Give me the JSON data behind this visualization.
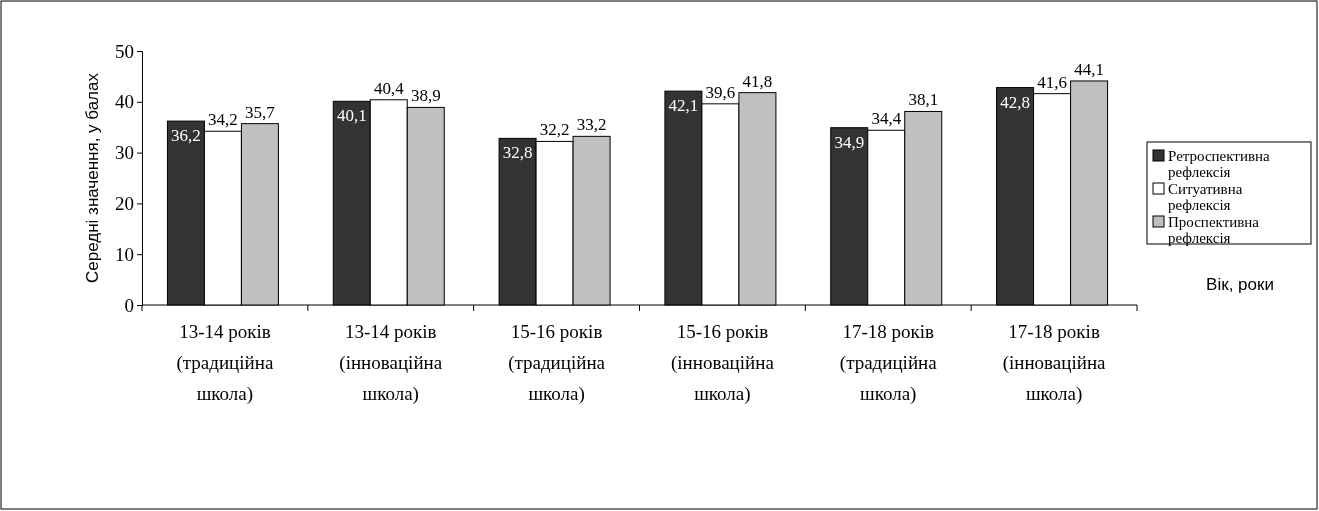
{
  "chart_data": {
    "type": "bar",
    "xlabel": "Вік, роки",
    "ylabel": "Середні значення, у балах",
    "categories": [
      "13-14 років\n(традиційна\nшкола)",
      "13-14 років\n(інноваційна\nшкола)",
      "15-16 років\n(традиційна\nшкола)",
      "15-16 років\n(інноваційна\nшкола)",
      "17-18 років\n(традиційна\nшкола)",
      "17-18 років\n(інноваційна\nшкола)"
    ],
    "series": [
      {
        "name": "Ретроспективна рефлексія",
        "color": "#333333",
        "values": [
          36.2,
          40.1,
          32.8,
          42.1,
          34.9,
          42.8
        ],
        "value_labels": [
          "36,2",
          "40,1",
          "32,8",
          "42,1",
          "34,9",
          "42,8"
        ]
      },
      {
        "name": "Ситуативна рефлексія",
        "color": "#ffffff",
        "values": [
          34.2,
          40.4,
          32.2,
          39.6,
          34.4,
          41.6
        ],
        "value_labels": [
          "34,2",
          "40,4",
          "32,2",
          "39,6",
          "34,4",
          "41,6"
        ]
      },
      {
        "name": "Проспективна рефлексія",
        "color": "#c0c0c0",
        "values": [
          35.7,
          38.9,
          33.2,
          41.8,
          38.1,
          44.1
        ],
        "value_labels": [
          "35,7",
          "38,9",
          "33,2",
          "41,8",
          "38,1",
          "44,1"
        ]
      }
    ],
    "ylim": [
      0,
      50
    ],
    "yticks": [
      0,
      10,
      20,
      30,
      40,
      50
    ],
    "grid": false,
    "legend": "right"
  }
}
